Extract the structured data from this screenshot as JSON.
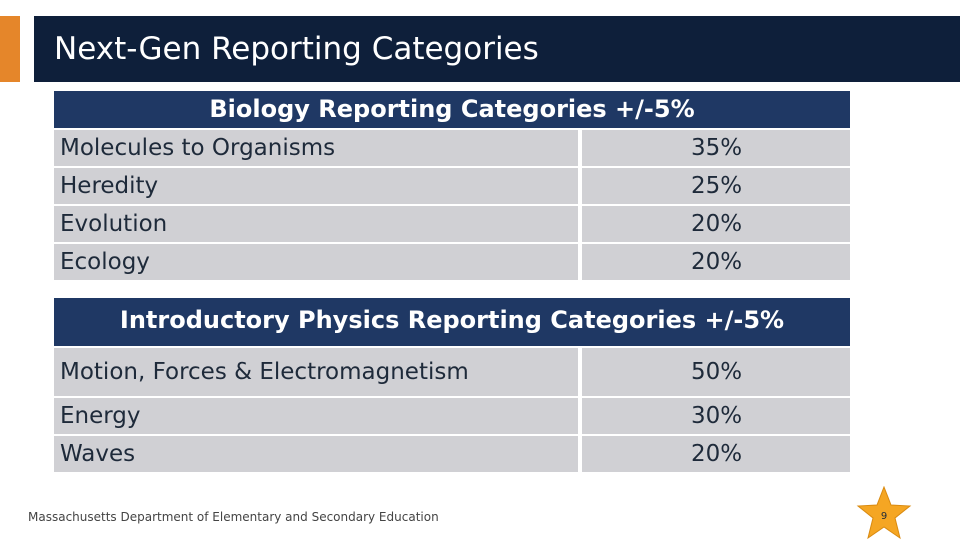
{
  "slide": {
    "title": "Next-Gen Reporting Categories",
    "footer": "Massachusetts Department of Elementary and Secondary Education",
    "page_number": "9"
  },
  "biology": {
    "header": "Biology Reporting Categories +/-5%",
    "rows": [
      {
        "label": "Molecules to Organisms",
        "value": "35%"
      },
      {
        "label": "Heredity",
        "value": "25%"
      },
      {
        "label": "Evolution",
        "value": "20%"
      },
      {
        "label": "Ecology",
        "value": "20%"
      }
    ]
  },
  "physics": {
    "header": "Introductory Physics Reporting Categories +/-5%",
    "rows": [
      {
        "label": "Motion, Forces & Electromagnetism",
        "value": "50%"
      },
      {
        "label": "Energy",
        "value": "30%"
      },
      {
        "label": "Waves",
        "value": "20%"
      }
    ]
  },
  "colors": {
    "title_bar": "#0e1f3a",
    "accent": "#e5862a",
    "table_header": "#1f3864",
    "cell": "#d0d0d4",
    "star": "#f5a623"
  }
}
